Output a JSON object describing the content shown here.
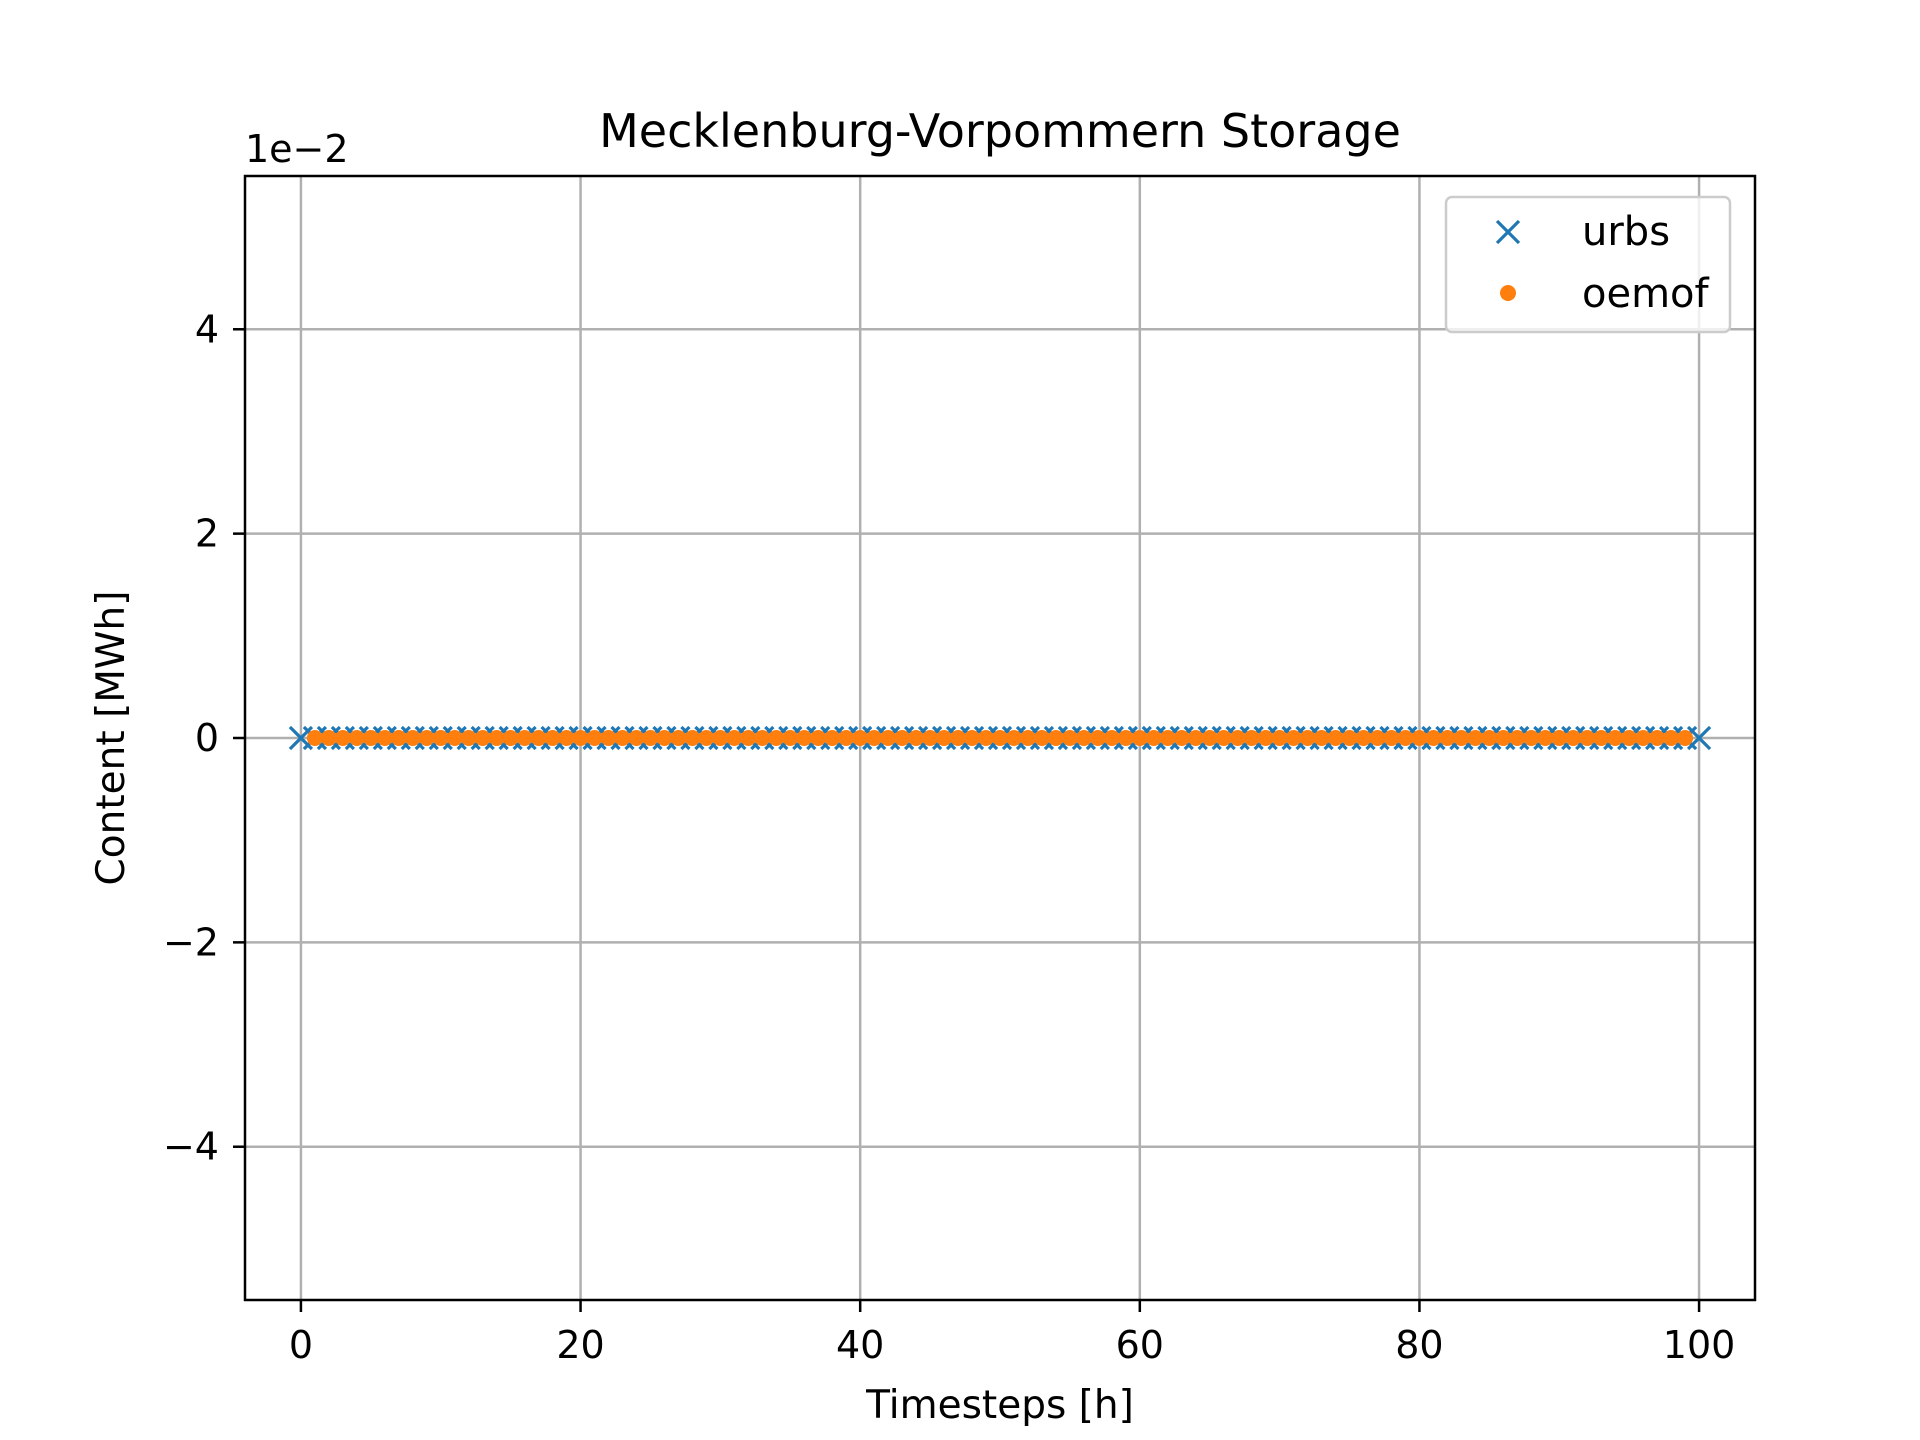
{
  "chart_data": {
    "type": "scatter",
    "title": "Mecklenburg-Vorpommern Storage",
    "xlabel": "Timesteps [h]",
    "ylabel": "Content [MWh]",
    "y_offset_label": "1e−2",
    "xlim": [
      -4,
      104
    ],
    "ylim": [
      -0.055,
      0.055
    ],
    "x_ticks": [
      0,
      20,
      40,
      60,
      80,
      100
    ],
    "x_tick_labels": [
      "0",
      "20",
      "40",
      "60",
      "80",
      "100"
    ],
    "y_ticks": [
      -0.04,
      -0.02,
      0,
      0.02,
      0.04
    ],
    "y_tick_labels": [
      "−4",
      "−2",
      "0",
      "2",
      "4"
    ],
    "grid": true,
    "legend_position": "top-right",
    "series": [
      {
        "name": "urbs",
        "marker": "x",
        "color": "#1f77b4",
        "x_start": 0,
        "x_end": 100,
        "x_step": 1,
        "y_constant": 0
      },
      {
        "name": "oemof",
        "marker": "dot",
        "color": "#ff7f0e",
        "x_start": 1,
        "x_end": 99,
        "x_step": 1,
        "y_constant": 0
      }
    ]
  }
}
